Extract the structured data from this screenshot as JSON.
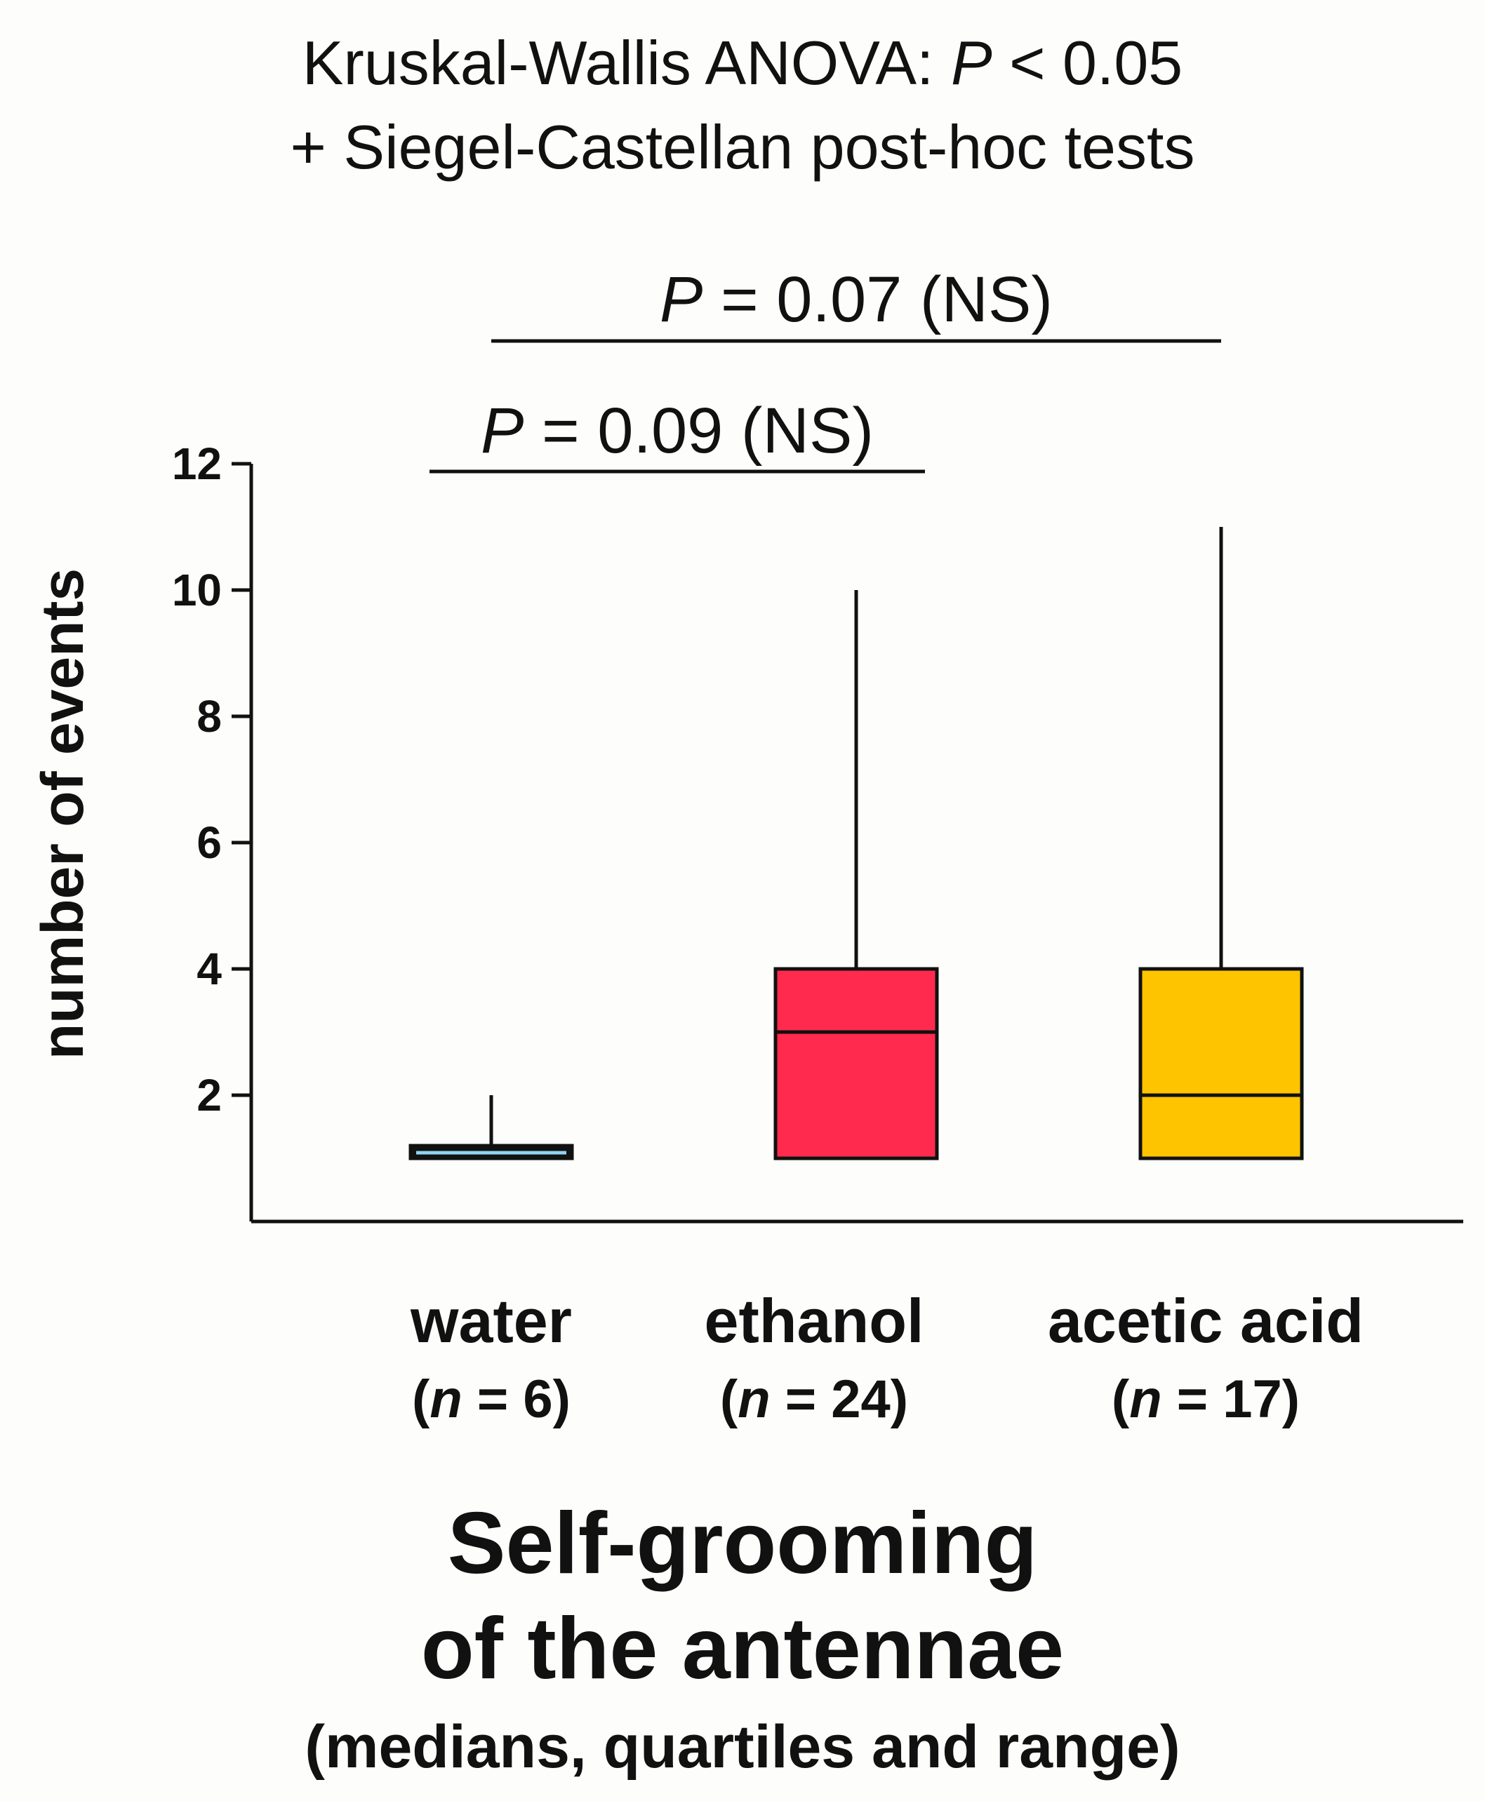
{
  "stats": {
    "line1_prefix": "Kruskal-Wallis ANOVA: ",
    "line1_p": "P",
    "line1_suffix": " < 0.05",
    "line2": "+ Siegel-Castellan post-hoc tests"
  },
  "comparisons": [
    {
      "p": "P",
      "label": " = 0.07 (NS)",
      "from": "water",
      "to": "acetic acid"
    },
    {
      "p": "P",
      "label": " = 0.09 (NS)",
      "from": "water",
      "to": "ethanol"
    }
  ],
  "chart_data": {
    "type": "box",
    "title": "Self-grooming of the antennae",
    "subtitle": "(medians, quartiles and range)",
    "ylabel": "number of events",
    "ylim": [
      0,
      12
    ],
    "yticks": [
      2,
      4,
      6,
      8,
      10,
      12
    ],
    "categories": [
      "water",
      "ethanol",
      "acetic acid"
    ],
    "n": [
      "(n = 6)",
      "(n = 24)",
      "(n = 17)"
    ],
    "boxes": [
      {
        "name": "water",
        "min": 1,
        "q1": 1,
        "median": 1,
        "q3": 1.2,
        "max": 2,
        "color": "#8fd3f0"
      },
      {
        "name": "ethanol",
        "min": 1,
        "q1": 1,
        "median": 3,
        "q3": 4,
        "max": 10,
        "color": "#ff2a4d"
      },
      {
        "name": "acetic acid",
        "min": 1,
        "q1": 1,
        "median": 2,
        "q3": 4,
        "max": 11,
        "color": "#ffc400"
      }
    ],
    "grid": false
  },
  "title_lines": [
    "Self-grooming",
    "of the antennae"
  ],
  "subtitle": "(medians, quartiles and range)"
}
